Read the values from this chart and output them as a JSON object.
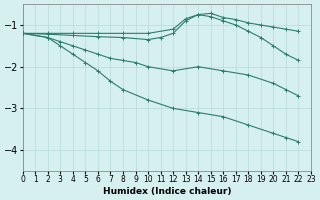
{
  "xlabel": "Humidex (Indice chaleur)",
  "ylabel": "",
  "bg_color": "#d6f0f0",
  "line_color": "#2a7d6b",
  "grid_color": "#b8dada",
  "xlim": [
    0,
    23
  ],
  "ylim": [
    -4.5,
    -0.5
  ],
  "yticks": [
    -4,
    -3,
    -2,
    -1
  ],
  "xticks": [
    0,
    1,
    2,
    3,
    4,
    5,
    6,
    7,
    8,
    9,
    10,
    11,
    12,
    13,
    14,
    15,
    16,
    17,
    18,
    19,
    20,
    21,
    22,
    23
  ],
  "lines": [
    {
      "x": [
        0,
        2,
        4,
        6,
        8,
        10,
        12,
        13,
        14,
        15,
        16,
        17,
        18,
        19,
        20,
        21,
        22
      ],
      "y": [
        -1.2,
        -1.2,
        -1.2,
        -1.2,
        -1.2,
        -1.2,
        -1.1,
        -0.85,
        -0.75,
        -0.72,
        -0.82,
        -0.87,
        -0.95,
        -1.0,
        -1.05,
        -1.1,
        -1.15
      ]
    },
    {
      "x": [
        0,
        2,
        4,
        6,
        8,
        10,
        11,
        12,
        13,
        14,
        15,
        16,
        17,
        18,
        19,
        20,
        21,
        22
      ],
      "y": [
        -1.2,
        -1.22,
        -1.25,
        -1.28,
        -1.3,
        -1.35,
        -1.3,
        -1.2,
        -0.9,
        -0.75,
        -0.8,
        -0.9,
        -1.0,
        -1.15,
        -1.3,
        -1.5,
        -1.7,
        -1.85
      ]
    },
    {
      "x": [
        0,
        2,
        3,
        4,
        5,
        6,
        7,
        8,
        9,
        10,
        12,
        14,
        16,
        18,
        20,
        21,
        22
      ],
      "y": [
        -1.2,
        -1.3,
        -1.4,
        -1.5,
        -1.6,
        -1.7,
        -1.8,
        -1.85,
        -1.9,
        -2.0,
        -2.1,
        -2.0,
        -2.1,
        -2.2,
        -2.4,
        -2.55,
        -2.7
      ]
    },
    {
      "x": [
        0,
        2,
        3,
        4,
        5,
        6,
        7,
        8,
        10,
        12,
        14,
        16,
        18,
        20,
        21,
        22
      ],
      "y": [
        -1.2,
        -1.3,
        -1.5,
        -1.7,
        -1.9,
        -2.1,
        -2.35,
        -2.55,
        -2.8,
        -3.0,
        -3.1,
        -3.2,
        -3.4,
        -3.6,
        -3.7,
        -3.8
      ]
    }
  ]
}
